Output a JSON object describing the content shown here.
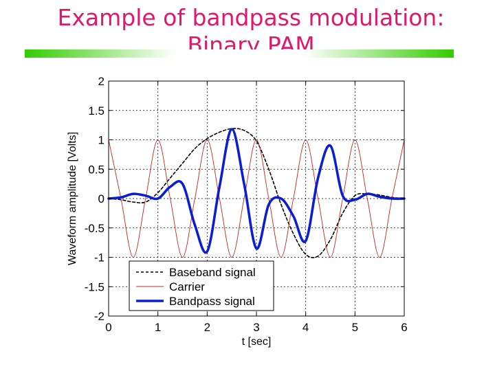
{
  "slide": {
    "title_line1": "Example of bandpass modulation:",
    "title_line2": "Binary PAM",
    "accent_color": "#e0186c",
    "bar_color_dark": "#33cc00",
    "bar_color_light": "#ffffff"
  },
  "chart_data": {
    "type": "line",
    "title": "",
    "xlabel": "t [sec]",
    "ylabel": "Waveform amplitude [Volts]",
    "xlim": [
      0,
      6
    ],
    "ylim": [
      -2,
      2
    ],
    "grid": true,
    "legend_position": "bottom-left",
    "x_ticks": [
      0,
      1,
      2,
      3,
      4,
      5,
      6
    ],
    "y_ticks": [
      2,
      1.5,
      1,
      0.5,
      0,
      -0.5,
      -1,
      -1.5,
      -2
    ],
    "x_tick_labels": [
      "0",
      "1",
      "2",
      "3",
      "4",
      "5",
      "6"
    ],
    "y_tick_labels": [
      "2",
      "1.5",
      "1",
      "0.5",
      "0",
      "-0.5",
      "-1",
      "-1.5",
      "-2"
    ],
    "x": [
      0,
      0.25,
      0.5,
      0.75,
      1.0,
      1.25,
      1.5,
      1.75,
      2.0,
      2.25,
      2.5,
      2.75,
      3.0,
      3.25,
      3.5,
      3.75,
      4.0,
      4.25,
      4.5,
      4.75,
      5.0,
      5.25,
      5.5,
      5.75,
      6.0
    ],
    "series": [
      {
        "name": "Baseband signal",
        "color": "#000000",
        "style": "dashed",
        "values": [
          0.0,
          -0.02,
          -0.06,
          -0.06,
          0.1,
          0.35,
          0.6,
          0.85,
          1.02,
          1.13,
          1.19,
          1.16,
          0.98,
          0.5,
          -0.1,
          -0.6,
          -0.95,
          -0.98,
          -0.7,
          -0.25,
          0.05,
          0.08,
          0.06,
          0.02,
          0.0
        ]
      },
      {
        "name": "Carrier",
        "color": "#cc2020",
        "style": "thin",
        "values": [
          1.0,
          0.0,
          -1.0,
          0.0,
          1.0,
          0.0,
          -1.0,
          0.0,
          1.0,
          0.0,
          -1.0,
          0.0,
          1.0,
          0.0,
          -1.0,
          0.0,
          1.0,
          0.0,
          -1.0,
          0.0,
          1.0,
          0.0,
          -1.0,
          0.0,
          1.0
        ]
      },
      {
        "name": "Bandpass signal",
        "color": "#0a1ed2",
        "style": "thick",
        "values": [
          0.0,
          0.02,
          0.08,
          0.05,
          0.0,
          0.2,
          0.25,
          -0.45,
          -0.9,
          0.2,
          1.18,
          0.25,
          -0.85,
          -0.1,
          0.0,
          -0.3,
          -0.72,
          0.35,
          0.9,
          0.05,
          -0.02,
          0.08,
          0.03,
          0.0,
          0.0
        ]
      }
    ]
  }
}
